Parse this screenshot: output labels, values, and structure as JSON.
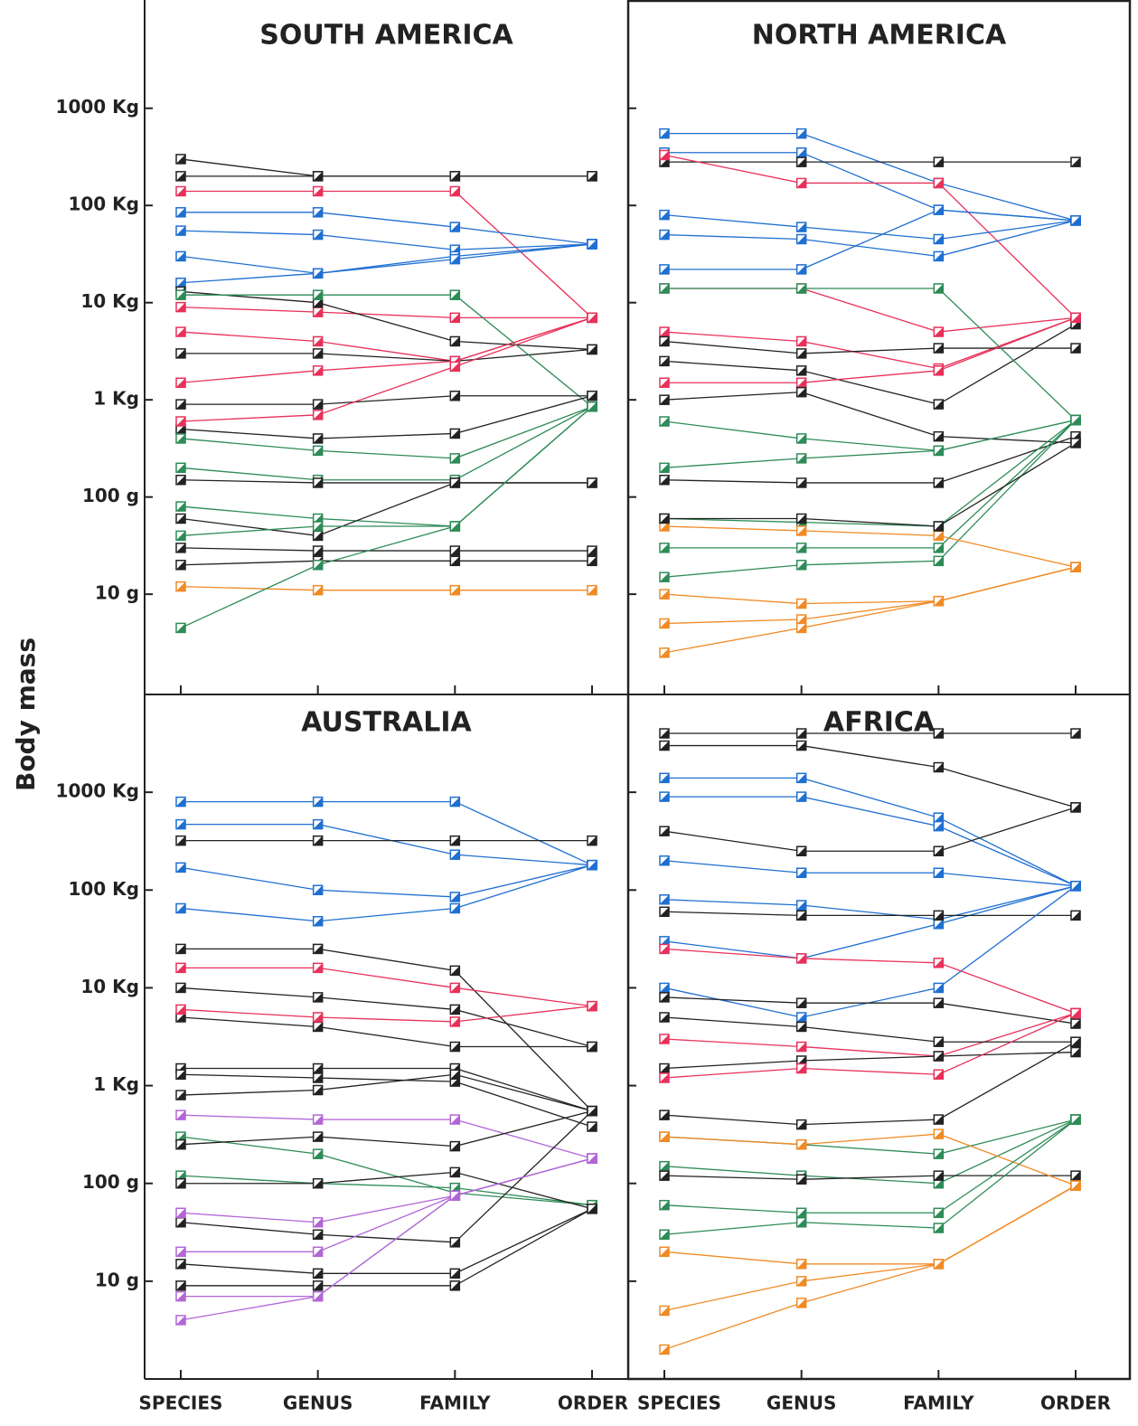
{
  "ylabel": "Body mass",
  "chart_data": [
    {
      "type": "line",
      "title": "SOUTH AMERICA",
      "yscale": "log",
      "categories": [
        null,
        null,
        null,
        null
      ],
      "ylim": [
        0.93,
        13000000
      ],
      "yticks": [
        {
          "value": 10,
          "label": "10 g"
        },
        {
          "value": 100,
          "label": "100 g"
        },
        {
          "value": 1000,
          "label": "1 Kg"
        },
        {
          "value": 10000,
          "label": "10 Kg"
        },
        {
          "value": 100000,
          "label": "100 Kg"
        },
        {
          "value": 1000000,
          "label": "1000 Kg"
        }
      ],
      "series": [
        {
          "color": "#222222",
          "values": [
            300000,
            200000,
            200000,
            200000
          ]
        },
        {
          "color": "#222222",
          "values": [
            200000,
            200000,
            200000,
            200000
          ]
        },
        {
          "color": "#e8315a",
          "values": [
            140000,
            140000,
            140000,
            7000
          ]
        },
        {
          "color": "#1f6fd1",
          "values": [
            85000,
            85000,
            60000,
            40000
          ]
        },
        {
          "color": "#1f6fd1",
          "values": [
            55000,
            50000,
            35000,
            40000
          ]
        },
        {
          "color": "#1f6fd1",
          "values": [
            30000,
            20000,
            30000,
            40000
          ]
        },
        {
          "color": "#1f6fd1",
          "values": [
            16000,
            20000,
            28000,
            40000
          ]
        },
        {
          "color": "#e8315a",
          "values": [
            9000,
            8000,
            7000,
            7000
          ]
        },
        {
          "color": "#e8315a",
          "values": [
            5000,
            4000,
            2500,
            7000
          ]
        },
        {
          "color": "#222222",
          "values": [
            13000,
            10000,
            4000,
            3300
          ]
        },
        {
          "color": "#222222",
          "values": [
            3000,
            3000,
            2500,
            3300
          ]
        },
        {
          "color": "#2e8b57",
          "values": [
            12000,
            12000,
            12000,
            850
          ]
        },
        {
          "color": "#e8315a",
          "values": [
            1500,
            2000,
            2500,
            7000
          ]
        },
        {
          "color": "#222222",
          "values": [
            900,
            900,
            1100,
            1100
          ]
        },
        {
          "color": "#222222",
          "values": [
            500,
            400,
            450,
            1100
          ]
        },
        {
          "color": "#2e8b57",
          "values": [
            400,
            300,
            250,
            850
          ]
        },
        {
          "color": "#2e8b57",
          "values": [
            200,
            150,
            150,
            850
          ]
        },
        {
          "color": "#2e8b57",
          "values": [
            80,
            60,
            50,
            850
          ]
        },
        {
          "color": "#222222",
          "values": [
            150,
            140,
            140,
            140
          ]
        },
        {
          "color": "#222222",
          "values": [
            60,
            40,
            140,
            140
          ]
        },
        {
          "color": "#222222",
          "values": [
            30,
            28,
            28,
            28
          ]
        },
        {
          "color": "#222222",
          "values": [
            20,
            22,
            22,
            22
          ]
        },
        {
          "color": "#f08a24",
          "values": [
            12,
            11,
            11,
            11
          ]
        },
        {
          "color": "#2e8b57",
          "values": [
            4.5,
            20,
            50,
            850
          ]
        },
        {
          "color": "#e8315a",
          "values": [
            600,
            700,
            2200,
            7000
          ]
        },
        {
          "color": "#2e8b57",
          "values": [
            40,
            50,
            50,
            850
          ]
        }
      ]
    },
    {
      "type": "line",
      "title": "NORTH AMERICA",
      "yscale": "log",
      "categories": [
        null,
        null,
        null,
        null
      ],
      "ylim": [
        0.93,
        13000000
      ],
      "yticks": [
        10,
        100,
        1000,
        10000,
        100000,
        1000000
      ],
      "series": [
        {
          "color": "#1f6fd1",
          "values": [
            550000,
            550000,
            170000,
            70000
          ]
        },
        {
          "color": "#1f6fd1",
          "values": [
            350000,
            350000,
            90000,
            70000
          ]
        },
        {
          "color": "#222222",
          "values": [
            280000,
            280000,
            280000,
            280000
          ]
        },
        {
          "color": "#e8315a",
          "values": [
            330000,
            170000,
            170000,
            7000
          ]
        },
        {
          "color": "#1f6fd1",
          "values": [
            80000,
            60000,
            45000,
            70000
          ]
        },
        {
          "color": "#1f6fd1",
          "values": [
            50000,
            45000,
            30000,
            70000
          ]
        },
        {
          "color": "#1f6fd1",
          "values": [
            22000,
            22000,
            90000,
            70000
          ]
        },
        {
          "color": "#e8315a",
          "values": [
            14000,
            14000,
            5000,
            7000
          ]
        },
        {
          "color": "#e8315a",
          "values": [
            5000,
            4000,
            2100,
            7000
          ]
        },
        {
          "color": "#222222",
          "values": [
            4000,
            3000,
            3400,
            3400
          ]
        },
        {
          "color": "#222222",
          "values": [
            2500,
            2000,
            900,
            6000
          ]
        },
        {
          "color": "#2e8b57",
          "values": [
            14000,
            14000,
            14000,
            620
          ]
        },
        {
          "color": "#e8315a",
          "values": [
            1500,
            1500,
            2000,
            7000
          ]
        },
        {
          "color": "#222222",
          "values": [
            1000,
            1200,
            420,
            360
          ]
        },
        {
          "color": "#2e8b57",
          "values": [
            600,
            400,
            300,
            620
          ]
        },
        {
          "color": "#2e8b57",
          "values": [
            200,
            250,
            300,
            620
          ]
        },
        {
          "color": "#222222",
          "values": [
            150,
            140,
            140,
            420
          ]
        },
        {
          "color": "#2e8b57",
          "values": [
            60,
            55,
            50,
            620
          ]
        },
        {
          "color": "#2e8b57",
          "values": [
            30,
            30,
            30,
            620
          ]
        },
        {
          "color": "#2e8b57",
          "values": [
            15,
            20,
            22,
            620
          ]
        },
        {
          "color": "#f08a24",
          "values": [
            50,
            45,
            40,
            19
          ]
        },
        {
          "color": "#f08a24",
          "values": [
            10,
            8,
            8.5,
            19
          ]
        },
        {
          "color": "#f08a24",
          "values": [
            5,
            5.5,
            8.5,
            19
          ]
        },
        {
          "color": "#f08a24",
          "values": [
            2.5,
            4.5,
            8.5,
            19
          ]
        },
        {
          "color": "#222222",
          "values": [
            60,
            60,
            50,
            360
          ]
        }
      ]
    },
    {
      "type": "line",
      "title": "AUSTRALIA",
      "yscale": "log",
      "categories": [
        "SPECIES",
        "GENUS",
        "FAMILY",
        "ORDER"
      ],
      "ylim": [
        1,
        10000000
      ],
      "yticks": [
        {
          "value": 10,
          "label": "10 g"
        },
        {
          "value": 100,
          "label": "100 g"
        },
        {
          "value": 1000,
          "label": "1 Kg"
        },
        {
          "value": 10000,
          "label": "10 Kg"
        },
        {
          "value": 100000,
          "label": "100 Kg"
        },
        {
          "value": 1000000,
          "label": "1000 Kg"
        }
      ],
      "series": [
        {
          "color": "#1f6fd1",
          "values": [
            800000,
            800000,
            800000,
            180000
          ]
        },
        {
          "color": "#1f6fd1",
          "values": [
            470000,
            470000,
            230000,
            180000
          ]
        },
        {
          "color": "#222222",
          "values": [
            320000,
            320000,
            320000,
            320000
          ]
        },
        {
          "color": "#1f6fd1",
          "values": [
            170000,
            100000,
            85000,
            180000
          ]
        },
        {
          "color": "#1f6fd1",
          "values": [
            65000,
            48000,
            65000,
            180000
          ]
        },
        {
          "color": "#222222",
          "values": [
            25000,
            25000,
            15000,
            550
          ]
        },
        {
          "color": "#e8315a",
          "values": [
            16000,
            16000,
            10000,
            6500
          ]
        },
        {
          "color": "#222222",
          "values": [
            10000,
            8000,
            6000,
            2500
          ]
        },
        {
          "color": "#222222",
          "values": [
            5000,
            4000,
            2500,
            2500
          ]
        },
        {
          "color": "#e8315a",
          "values": [
            6000,
            5000,
            4500,
            6500
          ]
        },
        {
          "color": "#222222",
          "values": [
            1500,
            1500,
            1500,
            550
          ]
        },
        {
          "color": "#222222",
          "values": [
            1300,
            1200,
            1100,
            380
          ]
        },
        {
          "color": "#222222",
          "values": [
            800,
            900,
            1300,
            550
          ]
        },
        {
          "color": "#b266d6",
          "values": [
            500,
            450,
            450,
            180
          ]
        },
        {
          "color": "#2e8b57",
          "values": [
            300,
            200,
            80,
            60
          ]
        },
        {
          "color": "#2e8b57",
          "values": [
            120,
            100,
            90,
            60
          ]
        },
        {
          "color": "#222222",
          "values": [
            250,
            300,
            240,
            550
          ]
        },
        {
          "color": "#222222",
          "values": [
            100,
            100,
            130,
            55
          ]
        },
        {
          "color": "#222222",
          "values": [
            40,
            30,
            25,
            550
          ]
        },
        {
          "color": "#222222",
          "values": [
            15,
            12,
            12,
            55
          ]
        },
        {
          "color": "#222222",
          "values": [
            9,
            9,
            9,
            55
          ]
        },
        {
          "color": "#b266d6",
          "values": [
            50,
            40,
            75,
            180
          ]
        },
        {
          "color": "#b266d6",
          "values": [
            20,
            20,
            75,
            180
          ]
        },
        {
          "color": "#b266d6",
          "values": [
            7,
            7,
            75,
            180
          ]
        },
        {
          "color": "#b266d6",
          "values": [
            4,
            7,
            75,
            180
          ]
        }
      ]
    },
    {
      "type": "line",
      "title": "AFRICA",
      "yscale": "log",
      "categories": [
        "SPECIES",
        "GENUS",
        "FAMILY",
        "ORDER"
      ],
      "ylim": [
        1,
        10000000
      ],
      "yticks": [
        10,
        100,
        1000,
        10000,
        100000,
        1000000
      ],
      "series": [
        {
          "color": "#222222",
          "values": [
            4000000,
            4000000,
            4000000,
            4000000
          ]
        },
        {
          "color": "#222222",
          "values": [
            3000000,
            3000000,
            1800000,
            700000
          ]
        },
        {
          "color": "#1f6fd1",
          "values": [
            1400000,
            1400000,
            550000,
            110000
          ]
        },
        {
          "color": "#1f6fd1",
          "values": [
            900000,
            900000,
            450000,
            110000
          ]
        },
        {
          "color": "#222222",
          "values": [
            400000,
            250000,
            250000,
            700000
          ]
        },
        {
          "color": "#1f6fd1",
          "values": [
            200000,
            150000,
            150000,
            110000
          ]
        },
        {
          "color": "#1f6fd1",
          "values": [
            80000,
            70000,
            50000,
            110000
          ]
        },
        {
          "color": "#1f6fd1",
          "values": [
            30000,
            20000,
            45000,
            110000
          ]
        },
        {
          "color": "#222222",
          "values": [
            60000,
            55000,
            55000,
            55000
          ]
        },
        {
          "color": "#1f6fd1",
          "values": [
            10000,
            5000,
            10000,
            110000
          ]
        },
        {
          "color": "#e8315a",
          "values": [
            25000,
            20000,
            18000,
            5500
          ]
        },
        {
          "color": "#222222",
          "values": [
            8000,
            7000,
            7000,
            4300
          ]
        },
        {
          "color": "#e8315a",
          "values": [
            3000,
            2500,
            2000,
            5500
          ]
        },
        {
          "color": "#222222",
          "values": [
            5000,
            4000,
            2800,
            2800
          ]
        },
        {
          "color": "#222222",
          "values": [
            1500,
            1800,
            2000,
            2200
          ]
        },
        {
          "color": "#e8315a",
          "values": [
            1200,
            1500,
            1300,
            5500
          ]
        },
        {
          "color": "#222222",
          "values": [
            500,
            400,
            450,
            2800
          ]
        },
        {
          "color": "#2e8b57",
          "values": [
            300,
            250,
            200,
            450
          ]
        },
        {
          "color": "#2e8b57",
          "values": [
            150,
            120,
            100,
            450
          ]
        },
        {
          "color": "#222222",
          "values": [
            120,
            110,
            120,
            120
          ]
        },
        {
          "color": "#f08a24",
          "values": [
            300,
            250,
            320,
            95
          ]
        },
        {
          "color": "#2e8b57",
          "values": [
            60,
            50,
            50,
            450
          ]
        },
        {
          "color": "#2e8b57",
          "values": [
            30,
            40,
            35,
            450
          ]
        },
        {
          "color": "#f08a24",
          "values": [
            20,
            15,
            15,
            95
          ]
        },
        {
          "color": "#f08a24",
          "values": [
            5,
            10,
            15,
            95
          ]
        },
        {
          "color": "#f08a24",
          "values": [
            2,
            6,
            15,
            95
          ]
        }
      ]
    }
  ]
}
